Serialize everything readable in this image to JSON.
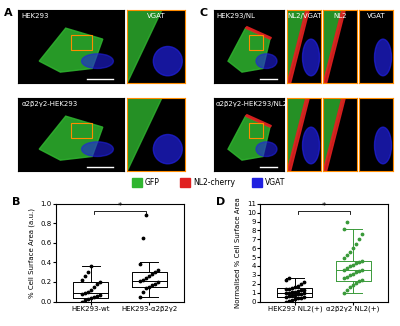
{
  "images": [
    {
      "label": "A",
      "rows": [
        {
          "main": "HEK293",
          "insets": [
            "VGAT"
          ]
        },
        {
          "main": "α2β2γ2-HEK293",
          "insets": [
            null
          ]
        }
      ]
    },
    {
      "label": "C",
      "rows": [
        {
          "main": "HEK293/NL",
          "insets": [
            "NL2/VGAT",
            "NL2",
            "VGAT"
          ]
        },
        {
          "main": "α2β2γ2-HEK293/NL2",
          "insets": [
            null,
            null,
            null
          ]
        }
      ]
    }
  ],
  "channels": [
    {
      "name": "GFP",
      "color": "#2fb52f"
    },
    {
      "name": "NL2-cherry",
      "color": "#e02020"
    },
    {
      "name": "VGAT",
      "color": "#2020e0"
    }
  ],
  "chart_data": [
    {
      "type": "box",
      "label": "B",
      "ylabel": "% Cell Surface Area (a.u.)",
      "categories": [
        "HEK293-wt",
        "HEK293-α2β2γ2"
      ],
      "ylim": [
        0.0,
        1.0
      ],
      "yticks": [
        0.0,
        0.2,
        0.4,
        0.6,
        0.8,
        1.0
      ],
      "annotation": "*",
      "boxes": [
        {
          "q1": 0.04,
          "median": 0.09,
          "q3": 0.2,
          "whislo": 0.0,
          "whishi": 0.36,
          "color": "#000000",
          "points": [
            0.0,
            0.02,
            0.03,
            0.04,
            0.05,
            0.06,
            0.07,
            0.08,
            0.09,
            0.1,
            0.12,
            0.15,
            0.18,
            0.2,
            0.22,
            0.26,
            0.3,
            0.36
          ]
        },
        {
          "q1": 0.15,
          "median": 0.21,
          "q3": 0.3,
          "whislo": 0.05,
          "whishi": 0.4,
          "color": "#000000",
          "points": [
            0.05,
            0.1,
            0.14,
            0.15,
            0.17,
            0.18,
            0.2,
            0.21,
            0.22,
            0.24,
            0.26,
            0.28,
            0.3,
            0.32,
            0.38,
            0.65,
            0.88
          ]
        }
      ]
    },
    {
      "type": "box",
      "label": "D",
      "ylabel": "Normalised % Cell Surface Area",
      "categories": [
        "HEK293 NL2(+)",
        "α2β2γ2 NL2(+)"
      ],
      "ylim": [
        0,
        11
      ],
      "yticks": [
        0,
        1,
        2,
        3,
        4,
        5,
        6,
        7,
        8,
        9,
        10,
        11
      ],
      "annotation": "*",
      "boxes": [
        {
          "q1": 0.5,
          "median": 1.0,
          "q3": 1.5,
          "whislo": 0.0,
          "whishi": 2.6,
          "color": "#000000",
          "points": [
            0.0,
            0.1,
            0.2,
            0.3,
            0.35,
            0.4,
            0.5,
            0.55,
            0.6,
            0.7,
            0.75,
            0.8,
            0.9,
            0.95,
            1.0,
            1.0,
            1.05,
            1.1,
            1.2,
            1.25,
            1.3,
            1.4,
            1.45,
            1.5,
            1.6,
            1.8,
            2.0,
            2.2,
            2.4,
            2.6
          ]
        },
        {
          "q1": 2.3,
          "median": 3.5,
          "q3": 4.6,
          "whislo": 1.0,
          "whishi": 8.2,
          "color": "#3a9a3a",
          "points": [
            1.0,
            1.3,
            1.6,
            1.9,
            2.1,
            2.3,
            2.4,
            2.6,
            2.8,
            3.0,
            3.1,
            3.3,
            3.4,
            3.5,
            3.6,
            3.8,
            4.0,
            4.1,
            4.3,
            4.5,
            4.6,
            4.9,
            5.2,
            5.6,
            6.0,
            6.5,
            7.0,
            7.6,
            8.2,
            9.0
          ]
        }
      ]
    }
  ]
}
